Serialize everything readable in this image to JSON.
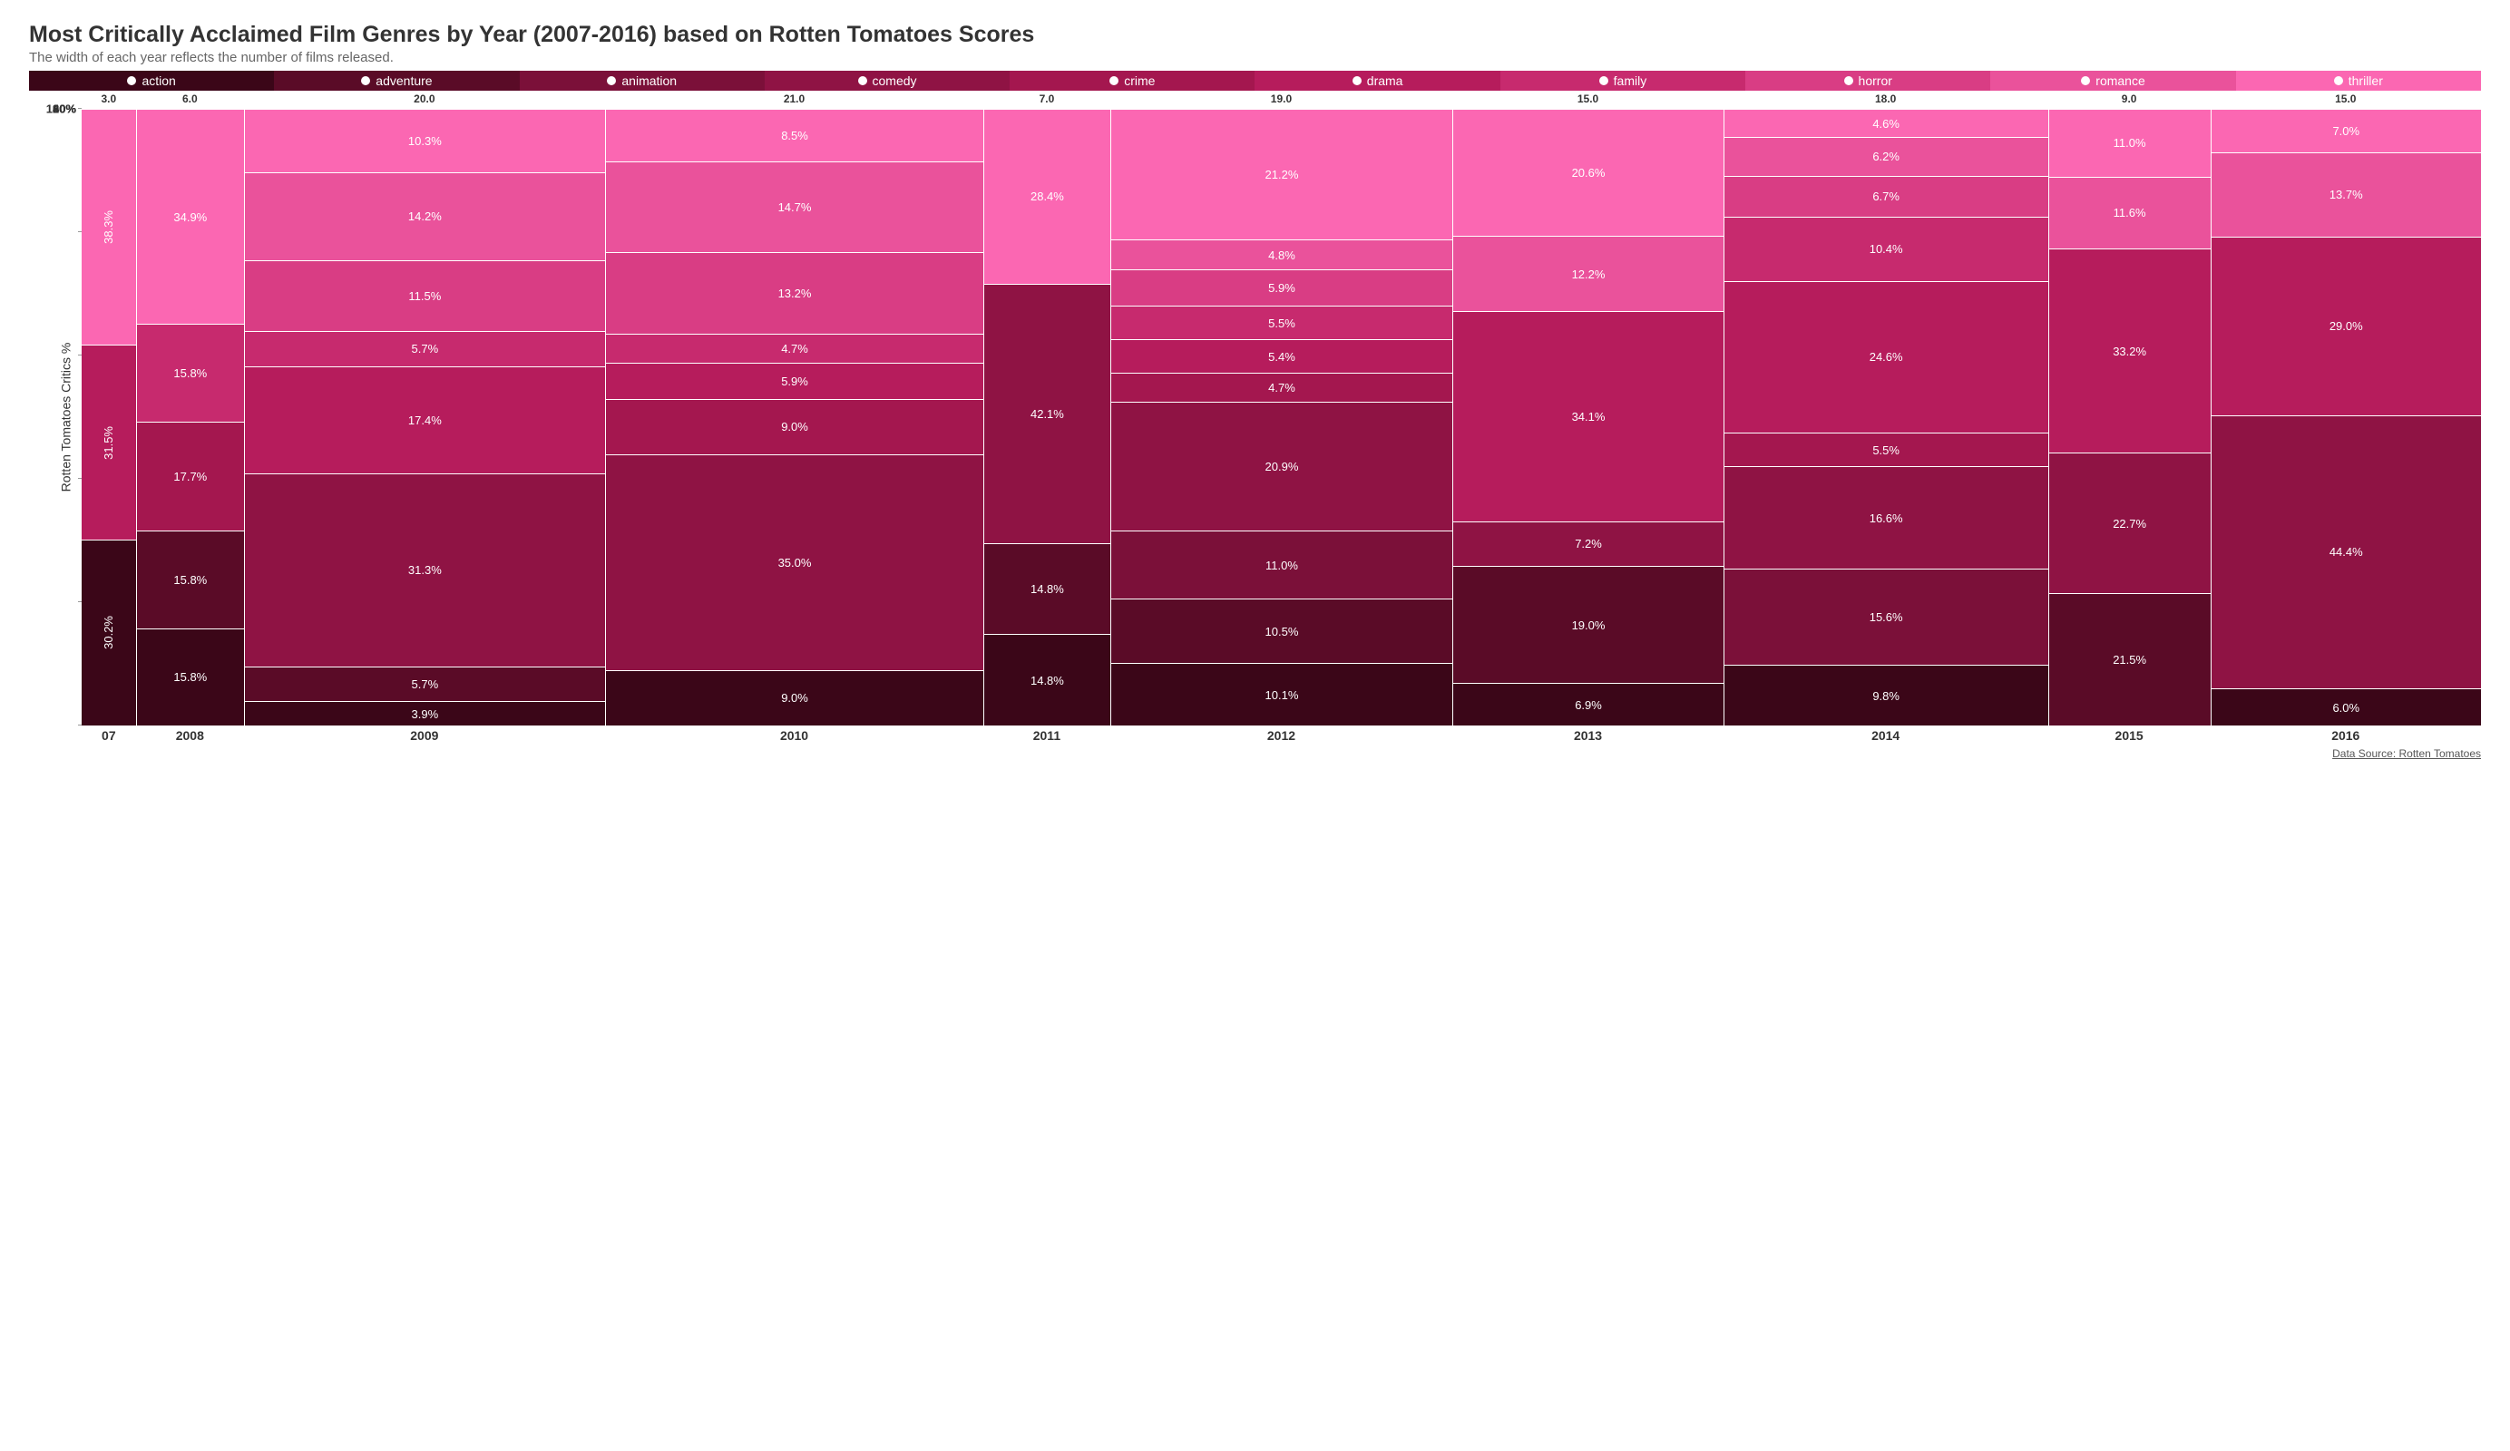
{
  "title": "Most Critically Acclaimed Film Genres by Year (2007-2016) based on Rotten Tomatoes Scores",
  "subtitle": "The width of each year reflects the number of films released.",
  "y_axis_label": "Rotten Tomatoes Critics %",
  "source": "Data Source: Rotten Tomatoes",
  "background_color": "#ffffff",
  "segment_border_color": "#ffffff",
  "label_text_color": "#ffffff",
  "title_fontsize": 25,
  "subtitle_fontsize": 15,
  "label_fontsize": 13,
  "legend": [
    {
      "label": "action",
      "color": "#3b0618"
    },
    {
      "label": "adventure",
      "color": "#5a0b27"
    },
    {
      "label": "animation",
      "color": "#7b1039"
    },
    {
      "label": "comedy",
      "color": "#8f1344"
    },
    {
      "label": "crime",
      "color": "#a4174f"
    },
    {
      "label": "drama",
      "color": "#b61c5c"
    },
    {
      "label": "family",
      "color": "#c72a6e"
    },
    {
      "label": "horror",
      "color": "#d93d84"
    },
    {
      "label": "romance",
      "color": "#ea529b"
    },
    {
      "label": "thriller",
      "color": "#fb67b2"
    }
  ],
  "y_axis": {
    "min": 0,
    "max": 100,
    "step": 20,
    "suffix": "%"
  },
  "years": [
    {
      "year": "07",
      "short": true,
      "count": 3.0,
      "segments": [
        {
          "genre_index": 0,
          "value": 30.2,
          "vertical": true
        },
        {
          "genre_index": 5,
          "value": 31.5,
          "vertical": true
        },
        {
          "genre_index": 9,
          "value": 38.3,
          "vertical": true
        }
      ]
    },
    {
      "year": "2008",
      "count": 6.0,
      "segments": [
        {
          "genre_index": 0,
          "value": 15.8
        },
        {
          "genre_index": 1,
          "value": 15.8
        },
        {
          "genre_index": 4,
          "value": 17.7
        },
        {
          "genre_index": 6,
          "value": 15.8
        },
        {
          "genre_index": 9,
          "value": 34.9
        }
      ]
    },
    {
      "year": "2009",
      "count": 20.0,
      "segments": [
        {
          "genre_index": 0,
          "value": 3.9
        },
        {
          "genre_index": 1,
          "value": 5.7
        },
        {
          "genre_index": 3,
          "value": 31.3
        },
        {
          "genre_index": 5,
          "value": 17.4
        },
        {
          "genre_index": 6,
          "value": 5.7
        },
        {
          "genre_index": 7,
          "value": 11.5
        },
        {
          "genre_index": 8,
          "value": 14.2
        },
        {
          "genre_index": 9,
          "value": 10.3
        }
      ]
    },
    {
      "year": "2010",
      "count": 21.0,
      "segments": [
        {
          "genre_index": 0,
          "value": 9.0
        },
        {
          "genre_index": 3,
          "value": 35.0
        },
        {
          "genre_index": 4,
          "value": 9.0
        },
        {
          "genre_index": 5,
          "value": 5.9
        },
        {
          "genre_index": 6,
          "value": 4.7
        },
        {
          "genre_index": 7,
          "value": 13.2
        },
        {
          "genre_index": 8,
          "value": 14.7
        },
        {
          "genre_index": 9,
          "value": 8.5
        }
      ]
    },
    {
      "year": "2011",
      "count": 7.0,
      "segments": [
        {
          "genre_index": 0,
          "value": 14.8
        },
        {
          "genre_index": 1,
          "value": 14.8
        },
        {
          "genre_index": 3,
          "value": 42.1
        },
        {
          "genre_index": 9,
          "value": 28.4
        }
      ]
    },
    {
      "year": "2012",
      "count": 19.0,
      "segments": [
        {
          "genre_index": 0,
          "value": 10.1
        },
        {
          "genre_index": 1,
          "value": 10.5
        },
        {
          "genre_index": 2,
          "value": 11.0
        },
        {
          "genre_index": 3,
          "value": 20.9
        },
        {
          "genre_index": 4,
          "value": 4.7
        },
        {
          "genre_index": 5,
          "value": 5.4
        },
        {
          "genre_index": 6,
          "value": 5.5
        },
        {
          "genre_index": 7,
          "value": 5.9
        },
        {
          "genre_index": 8,
          "value": 4.8
        },
        {
          "genre_index": 9,
          "value": 21.2
        }
      ]
    },
    {
      "year": "2013",
      "count": 15.0,
      "segments": [
        {
          "genre_index": 0,
          "value": 6.9
        },
        {
          "genre_index": 1,
          "value": 19.0
        },
        {
          "genre_index": 3,
          "value": 7.2
        },
        {
          "genre_index": 5,
          "value": 34.1
        },
        {
          "genre_index": 8,
          "value": 12.2
        },
        {
          "genre_index": 9,
          "value": 20.6
        }
      ]
    },
    {
      "year": "2014",
      "count": 18.0,
      "segments": [
        {
          "genre_index": 0,
          "value": 9.8
        },
        {
          "genre_index": 2,
          "value": 15.6
        },
        {
          "genre_index": 3,
          "value": 16.6
        },
        {
          "genre_index": 4,
          "value": 5.5
        },
        {
          "genre_index": 5,
          "value": 24.6
        },
        {
          "genre_index": 6,
          "value": 10.4
        },
        {
          "genre_index": 7,
          "value": 6.7
        },
        {
          "genre_index": 8,
          "value": 6.2
        },
        {
          "genre_index": 9,
          "value": 4.6
        }
      ]
    },
    {
      "year": "2015",
      "count": 9.0,
      "segments": [
        {
          "genre_index": 1,
          "value": 21.5
        },
        {
          "genre_index": 3,
          "value": 22.7
        },
        {
          "genre_index": 5,
          "value": 33.2
        },
        {
          "genre_index": 8,
          "value": 11.6
        },
        {
          "genre_index": 9,
          "value": 11.0
        }
      ]
    },
    {
      "year": "2016",
      "count": 15.0,
      "segments": [
        {
          "genre_index": 0,
          "value": 6.0
        },
        {
          "genre_index": 3,
          "value": 44.4
        },
        {
          "genre_index": 5,
          "value": 29.0
        },
        {
          "genre_index": 8,
          "value": 13.7
        },
        {
          "genre_index": 9,
          "value": 7.0
        }
      ]
    }
  ]
}
